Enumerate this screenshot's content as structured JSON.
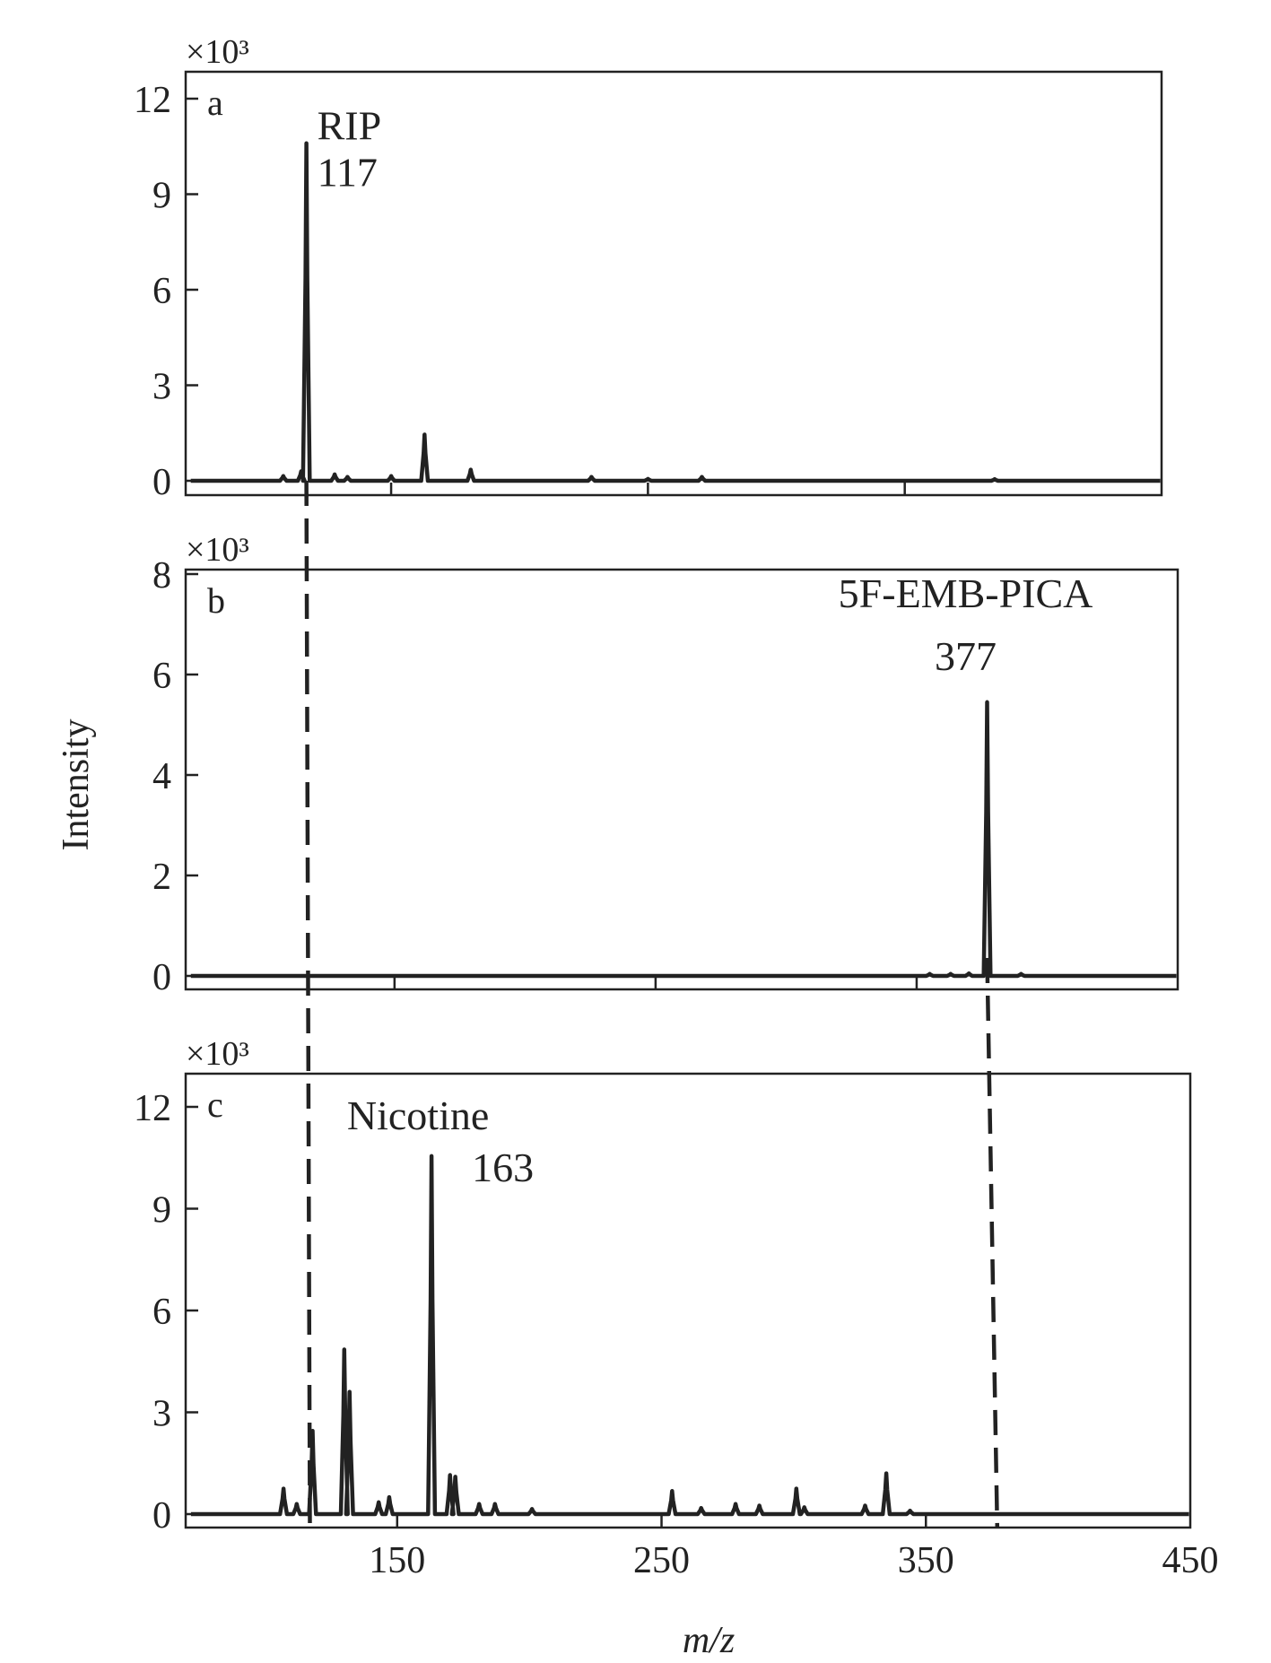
{
  "chart_data": {
    "type": "line",
    "xlabel": "m/z",
    "ylabel": "Intensity",
    "xlim": [
      70,
      450
    ],
    "xticks": [
      150,
      250,
      350,
      450
    ],
    "guide_lines_mz": [
      117,
      377
    ],
    "panels": [
      {
        "label": "a",
        "scale_label": "×10³",
        "ylim": [
          0,
          13
        ],
        "yticks": [
          0,
          3,
          6,
          9,
          12
        ],
        "annotation": {
          "name": "RIP",
          "mz": "117"
        },
        "baseline": 0.0,
        "peaks": [
          {
            "x": 108,
            "y": 0.15
          },
          {
            "x": 115,
            "y": 0.3
          },
          {
            "x": 117,
            "y": 10.6
          },
          {
            "x": 128,
            "y": 0.2
          },
          {
            "x": 133,
            "y": 0.12
          },
          {
            "x": 150,
            "y": 0.15
          },
          {
            "x": 163,
            "y": 1.45
          },
          {
            "x": 181,
            "y": 0.35
          },
          {
            "x": 228,
            "y": 0.12
          },
          {
            "x": 250,
            "y": 0.06
          },
          {
            "x": 271,
            "y": 0.12
          },
          {
            "x": 385,
            "y": 0.05
          }
        ]
      },
      {
        "label": "b",
        "scale_label": "×10³",
        "ylim": [
          0,
          8.2
        ],
        "yticks": [
          0,
          2,
          4,
          6,
          8
        ],
        "annotation": {
          "name": "5F-EMB-PICA",
          "mz": "377"
        },
        "baseline": 0.0,
        "peaks": [
          {
            "x": 355,
            "y": 0.04
          },
          {
            "x": 363,
            "y": 0.04
          },
          {
            "x": 370,
            "y": 0.05
          },
          {
            "x": 377,
            "y": 5.45
          },
          {
            "x": 390,
            "y": 0.04
          }
        ]
      },
      {
        "label": "c",
        "scale_label": "×10³",
        "ylim": [
          0,
          13
        ],
        "yticks": [
          0,
          3,
          6,
          9,
          12
        ],
        "annotation": {
          "name": "Nicotine",
          "mz": "163"
        },
        "baseline": 0.0,
        "peaks": [
          {
            "x": 107,
            "y": 0.75
          },
          {
            "x": 112,
            "y": 0.3
          },
          {
            "x": 118,
            "y": 2.45
          },
          {
            "x": 130,
            "y": 4.85
          },
          {
            "x": 132,
            "y": 3.6
          },
          {
            "x": 143,
            "y": 0.35
          },
          {
            "x": 147,
            "y": 0.5
          },
          {
            "x": 163,
            "y": 10.55
          },
          {
            "x": 170,
            "y": 1.15
          },
          {
            "x": 172,
            "y": 1.1
          },
          {
            "x": 181,
            "y": 0.3
          },
          {
            "x": 187,
            "y": 0.3
          },
          {
            "x": 201,
            "y": 0.15
          },
          {
            "x": 254,
            "y": 0.68
          },
          {
            "x": 265,
            "y": 0.18
          },
          {
            "x": 278,
            "y": 0.3
          },
          {
            "x": 287,
            "y": 0.25
          },
          {
            "x": 301,
            "y": 0.75
          },
          {
            "x": 304,
            "y": 0.2
          },
          {
            "x": 327,
            "y": 0.25
          },
          {
            "x": 335,
            "y": 1.2
          },
          {
            "x": 344,
            "y": 0.1
          }
        ]
      }
    ]
  }
}
